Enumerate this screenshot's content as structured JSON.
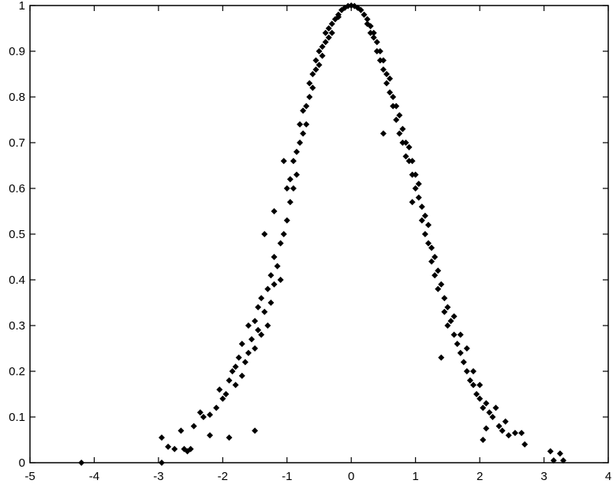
{
  "chart_data": {
    "type": "scatter",
    "title": "",
    "xlabel": "",
    "ylabel": "",
    "xlim": [
      -5,
      4
    ],
    "ylim": [
      0,
      1
    ],
    "xticks": [
      -5,
      -4,
      -3,
      -2,
      -1,
      0,
      1,
      2,
      3,
      4
    ],
    "yticks": [
      0,
      0.1,
      0.2,
      0.3,
      0.4,
      0.5,
      0.6,
      0.7,
      0.8,
      0.9,
      1
    ],
    "xtick_labels": [
      "-5",
      "-4",
      "-3",
      "-2",
      "-1",
      "0",
      "1",
      "2",
      "3",
      "4"
    ],
    "ytick_labels": [
      "0",
      "0.1",
      "0.2",
      "0.3",
      "0.4",
      "0.5",
      "0.6",
      "0.7",
      "0.8",
      "0.9",
      "1"
    ],
    "grid": false,
    "marker": "diamond",
    "marker_color": "#000000",
    "points": [
      [
        -4.2,
        0.0
      ],
      [
        -2.95,
        0.055
      ],
      [
        -2.95,
        0.0
      ],
      [
        -2.85,
        0.035
      ],
      [
        -2.75,
        0.03
      ],
      [
        -2.65,
        0.07
      ],
      [
        -2.6,
        0.03
      ],
      [
        -2.55,
        0.025
      ],
      [
        -2.5,
        0.03
      ],
      [
        -2.45,
        0.08
      ],
      [
        -2.35,
        0.11
      ],
      [
        -2.3,
        0.1
      ],
      [
        -2.2,
        0.06
      ],
      [
        -2.2,
        0.105
      ],
      [
        -2.1,
        0.12
      ],
      [
        -2.05,
        0.16
      ],
      [
        -2.0,
        0.14
      ],
      [
        -1.95,
        0.15
      ],
      [
        -1.9,
        0.055
      ],
      [
        -1.9,
        0.18
      ],
      [
        -1.85,
        0.2
      ],
      [
        -1.8,
        0.21
      ],
      [
        -1.8,
        0.17
      ],
      [
        -1.75,
        0.23
      ],
      [
        -1.7,
        0.19
      ],
      [
        -1.7,
        0.26
      ],
      [
        -1.65,
        0.22
      ],
      [
        -1.6,
        0.24
      ],
      [
        -1.6,
        0.3
      ],
      [
        -1.55,
        0.27
      ],
      [
        -1.5,
        0.07
      ],
      [
        -1.5,
        0.31
      ],
      [
        -1.5,
        0.25
      ],
      [
        -1.45,
        0.29
      ],
      [
        -1.45,
        0.34
      ],
      [
        -1.4,
        0.36
      ],
      [
        -1.4,
        0.28
      ],
      [
        -1.35,
        0.33
      ],
      [
        -1.3,
        0.38
      ],
      [
        -1.3,
        0.3
      ],
      [
        -1.25,
        0.41
      ],
      [
        -1.25,
        0.35
      ],
      [
        -1.2,
        0.45
      ],
      [
        -1.2,
        0.39
      ],
      [
        -1.15,
        0.43
      ],
      [
        -1.1,
        0.4
      ],
      [
        -1.1,
        0.48
      ],
      [
        -1.05,
        0.5
      ],
      [
        -1.35,
        0.5
      ],
      [
        -1.2,
        0.55
      ],
      [
        -1.0,
        0.53
      ],
      [
        -1.0,
        0.6
      ],
      [
        -0.95,
        0.62
      ],
      [
        -0.95,
        0.57
      ],
      [
        -0.9,
        0.66
      ],
      [
        -0.9,
        0.6
      ],
      [
        -0.85,
        0.68
      ],
      [
        -0.85,
        0.63
      ],
      [
        -1.05,
        0.66
      ],
      [
        -0.8,
        0.7
      ],
      [
        -0.8,
        0.74
      ],
      [
        -0.75,
        0.72
      ],
      [
        -0.75,
        0.77
      ],
      [
        -0.7,
        0.78
      ],
      [
        -0.7,
        0.74
      ],
      [
        -0.65,
        0.8
      ],
      [
        -0.65,
        0.83
      ],
      [
        -0.6,
        0.82
      ],
      [
        -0.6,
        0.85
      ],
      [
        -0.55,
        0.86
      ],
      [
        -0.55,
        0.88
      ],
      [
        -0.5,
        0.87
      ],
      [
        -0.5,
        0.9
      ],
      [
        -0.45,
        0.91
      ],
      [
        -0.45,
        0.89
      ],
      [
        -0.4,
        0.92
      ],
      [
        -0.4,
        0.94
      ],
      [
        -0.35,
        0.93
      ],
      [
        -0.35,
        0.95
      ],
      [
        -0.3,
        0.96
      ],
      [
        -0.3,
        0.94
      ],
      [
        -0.25,
        0.97
      ],
      [
        -0.2,
        0.98
      ],
      [
        -0.2,
        0.975
      ],
      [
        -0.15,
        0.99
      ],
      [
        -0.1,
        0.995
      ],
      [
        -0.05,
        0.999
      ],
      [
        0.0,
        1.0
      ],
      [
        0.05,
        0.999
      ],
      [
        0.1,
        0.995
      ],
      [
        0.15,
        0.99
      ],
      [
        0.2,
        0.98
      ],
      [
        0.25,
        0.97
      ],
      [
        0.25,
        0.96
      ],
      [
        0.3,
        0.955
      ],
      [
        0.3,
        0.94
      ],
      [
        0.35,
        0.94
      ],
      [
        0.35,
        0.93
      ],
      [
        0.4,
        0.92
      ],
      [
        0.4,
        0.9
      ],
      [
        0.45,
        0.9
      ],
      [
        0.45,
        0.88
      ],
      [
        0.5,
        0.88
      ],
      [
        0.5,
        0.86
      ],
      [
        0.55,
        0.85
      ],
      [
        0.55,
        0.83
      ],
      [
        0.6,
        0.84
      ],
      [
        0.6,
        0.81
      ],
      [
        0.65,
        0.8
      ],
      [
        0.65,
        0.78
      ],
      [
        0.7,
        0.78
      ],
      [
        0.7,
        0.75
      ],
      [
        0.75,
        0.76
      ],
      [
        0.75,
        0.72
      ],
      [
        0.8,
        0.73
      ],
      [
        0.8,
        0.7
      ],
      [
        0.5,
        0.72
      ],
      [
        0.85,
        0.7
      ],
      [
        0.85,
        0.67
      ],
      [
        0.9,
        0.66
      ],
      [
        0.9,
        0.69
      ],
      [
        0.95,
        0.63
      ],
      [
        0.95,
        0.66
      ],
      [
        1.0,
        0.6
      ],
      [
        1.0,
        0.63
      ],
      [
        1.05,
        0.58
      ],
      [
        1.05,
        0.61
      ],
      [
        0.95,
        0.57
      ],
      [
        1.1,
        0.56
      ],
      [
        1.1,
        0.53
      ],
      [
        1.15,
        0.54
      ],
      [
        1.15,
        0.5
      ],
      [
        1.2,
        0.48
      ],
      [
        1.2,
        0.52
      ],
      [
        1.25,
        0.47
      ],
      [
        1.25,
        0.44
      ],
      [
        1.3,
        0.45
      ],
      [
        1.3,
        0.41
      ],
      [
        1.35,
        0.42
      ],
      [
        1.35,
        0.38
      ],
      [
        1.4,
        0.23
      ],
      [
        1.4,
        0.39
      ],
      [
        1.45,
        0.36
      ],
      [
        1.45,
        0.33
      ],
      [
        1.5,
        0.34
      ],
      [
        1.5,
        0.3
      ],
      [
        1.55,
        0.31
      ],
      [
        1.6,
        0.28
      ],
      [
        1.6,
        0.32
      ],
      [
        1.65,
        0.26
      ],
      [
        1.7,
        0.24
      ],
      [
        1.7,
        0.28
      ],
      [
        1.75,
        0.22
      ],
      [
        1.8,
        0.2
      ],
      [
        1.8,
        0.25
      ],
      [
        1.85,
        0.18
      ],
      [
        1.9,
        0.17
      ],
      [
        1.9,
        0.2
      ],
      [
        1.95,
        0.15
      ],
      [
        2.0,
        0.14
      ],
      [
        2.0,
        0.17
      ],
      [
        2.05,
        0.12
      ],
      [
        2.1,
        0.075
      ],
      [
        2.1,
        0.13
      ],
      [
        2.15,
        0.11
      ],
      [
        2.2,
        0.1
      ],
      [
        2.25,
        0.12
      ],
      [
        2.3,
        0.08
      ],
      [
        2.35,
        0.07
      ],
      [
        2.4,
        0.09
      ],
      [
        2.45,
        0.06
      ],
      [
        2.55,
        0.065
      ],
      [
        2.65,
        0.065
      ],
      [
        2.7,
        0.04
      ],
      [
        2.05,
        0.05
      ],
      [
        3.1,
        0.025
      ],
      [
        3.15,
        0.005
      ],
      [
        3.25,
        0.02
      ],
      [
        3.3,
        0.005
      ]
    ]
  }
}
